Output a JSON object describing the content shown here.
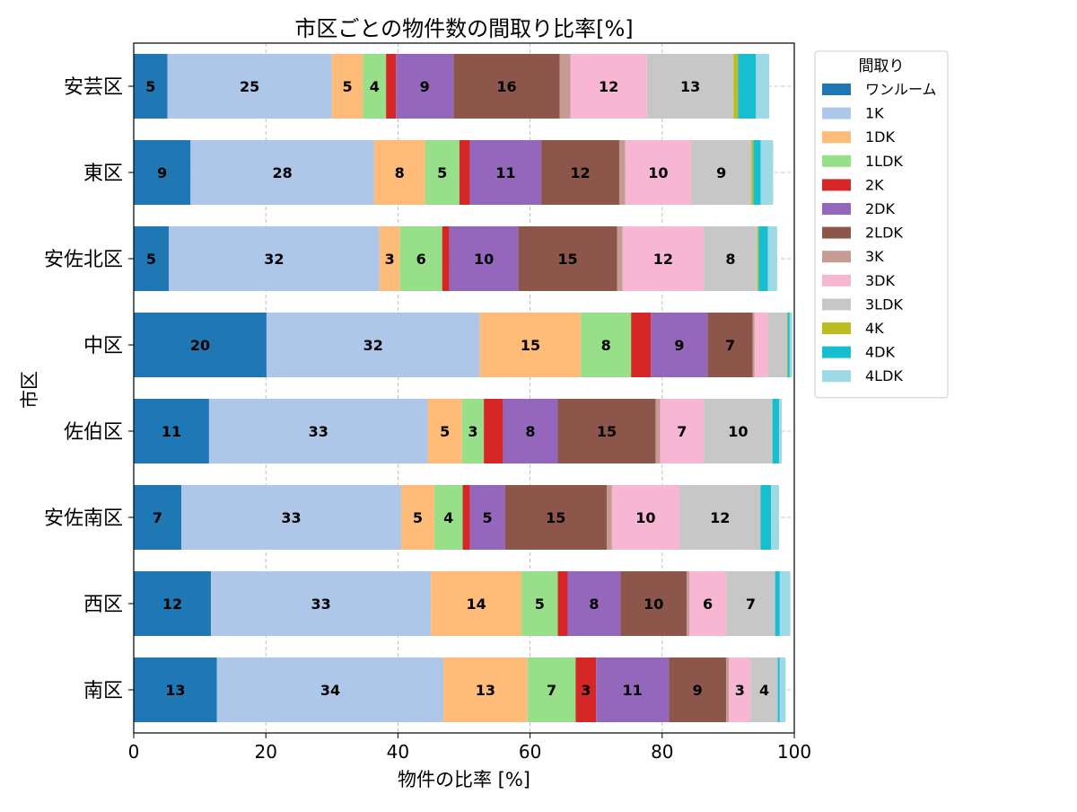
{
  "chart_data": {
    "type": "bar",
    "orientation": "horizontal",
    "stacked": true,
    "title": "市区ごとの物件数の間取り比率[%]",
    "xlabel": "物件の比率 [%]",
    "ylabel": "市区",
    "xlim": [
      0,
      100
    ],
    "xticks": [
      "0",
      "20",
      "40",
      "60",
      "80",
      "100"
    ],
    "grid": true,
    "legend_title": "間取り",
    "legend_position": "outside-top-right",
    "categories": [
      "安芸区",
      "東区",
      "安佐北区",
      "中区",
      "佐伯区",
      "安佐南区",
      "西区",
      "南区"
    ],
    "series": [
      {
        "name": "ワンルーム",
        "color": "#1f77b4",
        "values": [
          5.1,
          8.6,
          5.3,
          20.1,
          11.4,
          7.2,
          11.7,
          12.6
        ]
      },
      {
        "name": "1K",
        "color": "#aec7e8",
        "values": [
          24.9,
          27.8,
          31.9,
          32.3,
          33.1,
          33.3,
          33.3,
          34.3
        ]
      },
      {
        "name": "1DK",
        "color": "#ffbb78",
        "values": [
          4.7,
          7.7,
          3.1,
          15.3,
          5.2,
          5.0,
          13.7,
          12.7
        ]
      },
      {
        "name": "1LDK",
        "color": "#98df8a",
        "values": [
          3.5,
          5.2,
          6.4,
          7.6,
          3.3,
          4.3,
          5.5,
          7.3
        ]
      },
      {
        "name": "2K",
        "color": "#d62728",
        "values": [
          1.5,
          1.6,
          1.1,
          3.0,
          2.9,
          1.1,
          1.5,
          3.1
        ]
      },
      {
        "name": "2DK",
        "color": "#9467bd",
        "values": [
          8.7,
          10.8,
          10.4,
          8.6,
          8.3,
          5.3,
          8.0,
          11.0
        ]
      },
      {
        "name": "2LDK",
        "color": "#8c564b",
        "values": [
          16.1,
          11.8,
          15.0,
          6.8,
          14.8,
          15.4,
          10.0,
          8.7
        ]
      },
      {
        "name": "3K",
        "color": "#c49c94",
        "values": [
          1.6,
          0.9,
          0.8,
          0.3,
          0.7,
          0.8,
          0.4,
          0.4
        ]
      },
      {
        "name": "3DK",
        "color": "#f7b6d2",
        "values": [
          11.6,
          10.0,
          12.3,
          2.0,
          6.6,
          10.2,
          5.6,
          3.3
        ]
      },
      {
        "name": "3LDK",
        "color": "#c7c7c7",
        "values": [
          13.1,
          9.1,
          8.1,
          2.9,
          10.4,
          12.3,
          7.4,
          4.1
        ]
      },
      {
        "name": "4K",
        "color": "#bcbd22",
        "values": [
          0.7,
          0.3,
          0.2,
          0.1,
          0.0,
          0.0,
          0.0,
          0.0
        ]
      },
      {
        "name": "4DK",
        "color": "#17becf",
        "values": [
          2.7,
          1.1,
          1.4,
          0.3,
          1.0,
          1.6,
          0.7,
          0.3
        ]
      },
      {
        "name": "4LDK",
        "color": "#9edae5",
        "values": [
          2.0,
          1.9,
          1.4,
          0.4,
          0.4,
          1.2,
          1.6,
          0.9
        ]
      }
    ],
    "data_labels": [
      [
        5,
        25,
        5,
        4,
        null,
        9,
        16,
        null,
        12,
        13,
        null,
        null,
        null
      ],
      [
        9,
        28,
        8,
        5,
        null,
        11,
        12,
        null,
        10,
        9,
        null,
        null,
        null
      ],
      [
        5,
        32,
        3,
        6,
        null,
        10,
        15,
        null,
        12,
        8,
        null,
        null,
        null
      ],
      [
        20,
        32,
        15,
        8,
        null,
        9,
        7,
        null,
        null,
        null,
        null,
        null,
        null
      ],
      [
        11,
        33,
        5,
        3,
        null,
        8,
        15,
        null,
        7,
        10,
        null,
        null,
        null
      ],
      [
        7,
        33,
        5,
        4,
        null,
        5,
        15,
        null,
        10,
        12,
        null,
        null,
        null
      ],
      [
        12,
        33,
        14,
        5,
        null,
        8,
        10,
        null,
        6,
        7,
        null,
        null,
        null
      ],
      [
        13,
        34,
        13,
        7,
        3,
        11,
        9,
        null,
        3,
        4,
        null,
        null,
        null
      ]
    ]
  }
}
